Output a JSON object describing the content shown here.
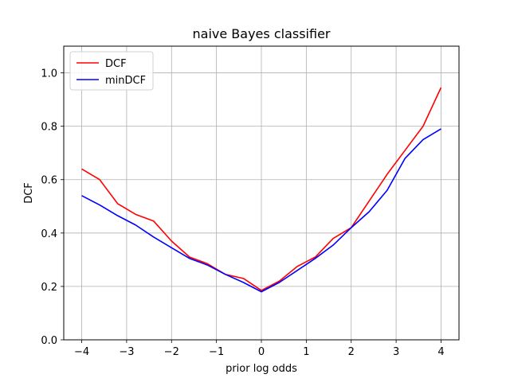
{
  "chart_data": {
    "type": "line",
    "title": "naive Bayes classifier",
    "xlabel": "prior log odds",
    "ylabel": "DCF",
    "xlim": [
      -4.4,
      4.4
    ],
    "ylim": [
      0.0,
      1.1
    ],
    "xticks": [
      -4,
      -3,
      -2,
      -1,
      0,
      1,
      2,
      3,
      4
    ],
    "xtick_labels": [
      "−4",
      "−3",
      "−2",
      "−1",
      "0",
      "1",
      "2",
      "3",
      "4"
    ],
    "yticks": [
      0.0,
      0.2,
      0.4,
      0.6,
      0.8,
      1.0
    ],
    "ytick_labels": [
      "0.0",
      "0.2",
      "0.4",
      "0.6",
      "0.8",
      "1.0"
    ],
    "grid": true,
    "legend_position": "top-left",
    "x": [
      -4.0,
      -3.6,
      -3.2,
      -2.8,
      -2.4,
      -2.0,
      -1.6,
      -1.2,
      -0.8,
      -0.4,
      0.0,
      0.4,
      0.8,
      1.2,
      1.6,
      2.0,
      2.4,
      2.8,
      3.2,
      3.6,
      4.0
    ],
    "series": [
      {
        "name": "DCF",
        "color": "#ff0000",
        "values": [
          0.64,
          0.6,
          0.51,
          0.47,
          0.445,
          0.37,
          0.31,
          0.285,
          0.245,
          0.23,
          0.185,
          0.22,
          0.275,
          0.31,
          0.38,
          0.42,
          0.52,
          0.62,
          0.71,
          0.8,
          0.945
        ]
      },
      {
        "name": "minDCF",
        "color": "#0000ff",
        "values": [
          0.54,
          0.505,
          0.465,
          0.43,
          0.385,
          0.345,
          0.305,
          0.28,
          0.245,
          0.215,
          0.18,
          0.215,
          0.26,
          0.305,
          0.355,
          0.42,
          0.48,
          0.56,
          0.68,
          0.75,
          0.79
        ]
      }
    ]
  }
}
